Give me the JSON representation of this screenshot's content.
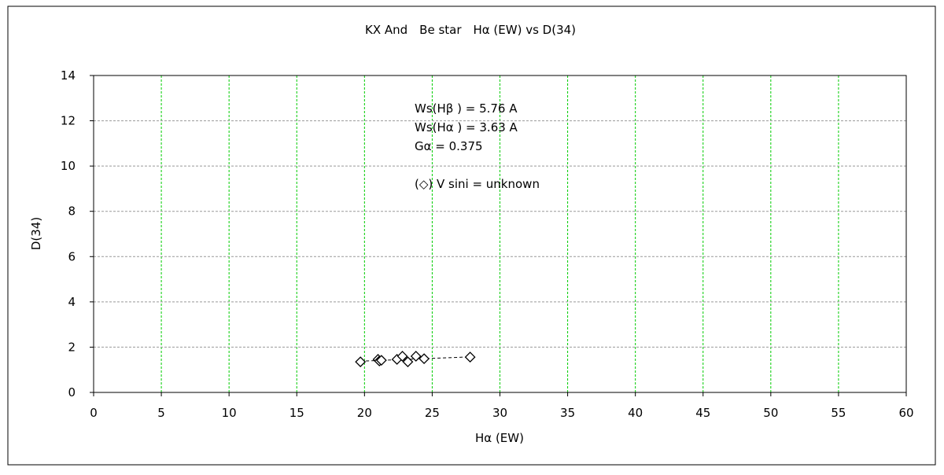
{
  "chart_data": {
    "type": "scatter",
    "title": "KX And　Be star　Hα (EW) vs D(34)",
    "xlabel": "Hα (EW)",
    "ylabel": "D(34)",
    "xlim": [
      0,
      60
    ],
    "ylim": [
      0,
      14
    ],
    "xticks": [
      0,
      5,
      10,
      15,
      20,
      25,
      30,
      35,
      40,
      45,
      50,
      55,
      60
    ],
    "yticks": [
      0,
      2,
      4,
      6,
      8,
      10,
      12,
      14
    ],
    "grid": true,
    "grid_colors": {
      "vertical": "#00cc00",
      "horizontal": "#999999"
    },
    "marker": "open-diamond",
    "points": [
      {
        "x": 19.7,
        "y": 1.35
      },
      {
        "x": 21.0,
        "y": 1.46
      },
      {
        "x": 21.1,
        "y": 1.39
      },
      {
        "x": 21.25,
        "y": 1.42
      },
      {
        "x": 22.4,
        "y": 1.46
      },
      {
        "x": 22.8,
        "y": 1.6
      },
      {
        "x": 23.2,
        "y": 1.35
      },
      {
        "x": 23.8,
        "y": 1.6
      },
      {
        "x": 24.4,
        "y": 1.49
      },
      {
        "x": 27.8,
        "y": 1.56
      }
    ],
    "trendline": {
      "x": [
        19.7,
        27.8
      ],
      "y": [
        1.38,
        1.57
      ],
      "style": "dashed"
    },
    "annotations": [
      "Ws(Hβ ) = 5.76 A",
      "Ws(Hα ) = 3.63 A",
      "Gα = 0.375",
      "(◇) V sini = unknown"
    ]
  }
}
